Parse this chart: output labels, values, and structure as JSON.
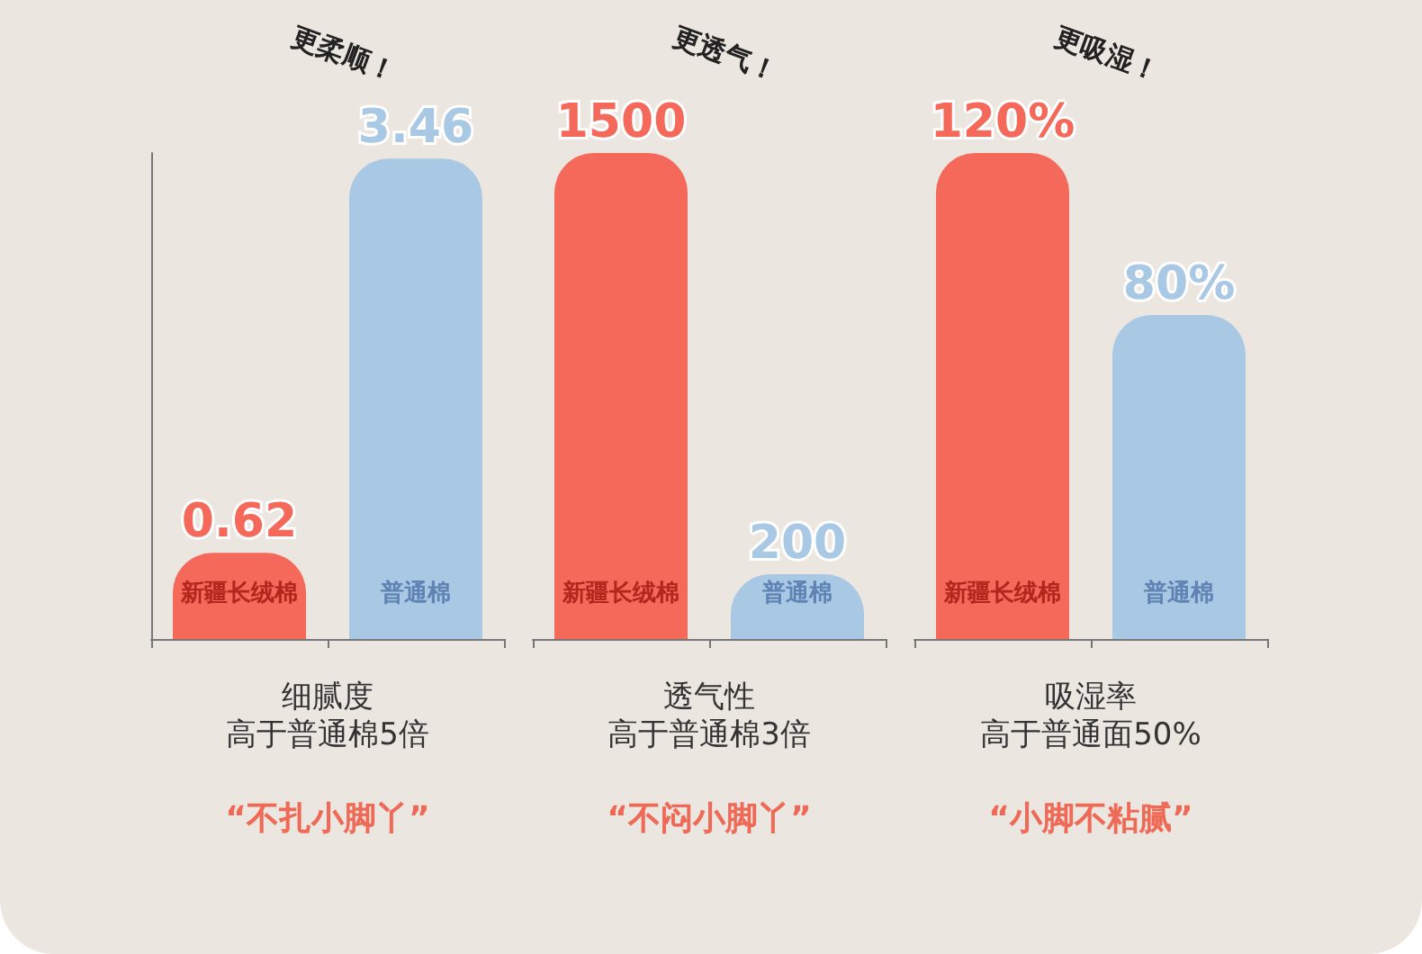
{
  "chart_data": [
    {
      "type": "bar",
      "categories": [
        "新疆长绒棉",
        "普通棉"
      ],
      "values": [
        0.62,
        3.46
      ],
      "colors": [
        "#f4695a",
        "#a9c8e4"
      ],
      "data_labels": true,
      "xlabel": "细腻度",
      "annotations": [
        "高于普通棉5倍",
        "“不扎小脚丫”",
        "更柔顺！"
      ]
    },
    {
      "type": "bar",
      "categories": [
        "新疆长绒棉",
        "普通棉"
      ],
      "values": [
        1500,
        200
      ],
      "colors": [
        "#f4695a",
        "#a9c8e4"
      ],
      "data_labels": true,
      "xlabel": "透气性",
      "annotations": [
        "高于普通棉3倍",
        "“不闷小脚丫”",
        "更透气！"
      ]
    },
    {
      "type": "bar",
      "categories": [
        "新疆长绒棉",
        "普通棉"
      ],
      "values": [
        120,
        80
      ],
      "value_labels": [
        "120%",
        "80%"
      ],
      "colors": [
        "#f4695a",
        "#a9c8e4"
      ],
      "xlabel": "吸湿率",
      "annotations": [
        "高于普通面50%",
        "“小脚不粘腻”",
        "更吸湿！"
      ]
    }
  ]
}
